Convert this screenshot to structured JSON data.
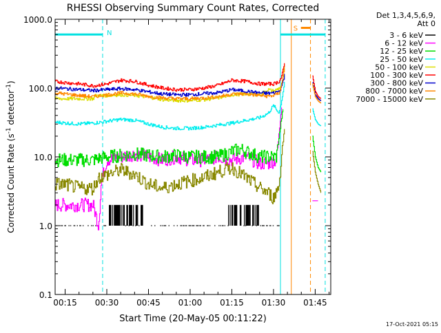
{
  "chart_data": {
    "type": "line",
    "title": "RHESSI Observing Summary Count Rates, Corrected",
    "xlabel": "Start Time (20-May-05 00:11:22)",
    "ylabel_main": "Corrected Count Rate (s",
    "ylabel_exp1": "-1",
    "ylabel_mid": " detector",
    "ylabel_exp2": "-1",
    "ylabel_end": ")",
    "y_scale": "log",
    "ylim": [
      0.1,
      1000
    ],
    "xlim_minutes": [
      11.4,
      110.6
    ],
    "x_ticks": [
      {
        "label": "00:15",
        "m": 15
      },
      {
        "label": "00:30",
        "m": 30
      },
      {
        "label": "00:45",
        "m": 45
      },
      {
        "label": "01:00",
        "m": 60
      },
      {
        "label": "01:15",
        "m": 75
      },
      {
        "label": "01:30",
        "m": 90
      },
      {
        "label": "01:45",
        "m": 105
      }
    ],
    "y_ticks": [
      {
        "label": "0.1",
        "v": 0.1
      },
      {
        "label": "1.0",
        "v": 1
      },
      {
        "label": "10.0",
        "v": 10
      },
      {
        "label": "100.0",
        "v": 100
      },
      {
        "label": "1000.0",
        "v": 1000
      }
    ],
    "legend_header": [
      "Det 1,3,4,5,6,9,",
      "Att 0"
    ],
    "legend_position": "right",
    "series": [
      {
        "name": "3 - 6 keV",
        "color": "#000000",
        "style": "sparse",
        "x": [
          11.4,
          20,
          23,
          27,
          28,
          35,
          38,
          40,
          45,
          50,
          55,
          60,
          65,
          70,
          73,
          75,
          77,
          78,
          80,
          83,
          86,
          89,
          91,
          91.8
        ],
        "y": [
          1,
          1,
          1,
          1,
          1,
          2,
          2,
          2,
          1,
          1,
          1,
          1,
          1,
          1,
          1,
          2,
          2,
          2,
          2,
          2,
          1,
          1,
          1,
          1.2
        ]
      },
      {
        "name": "6 - 12 keV",
        "color": "#ff00ff",
        "x": [
          11.4,
          20,
          25,
          27,
          28,
          30,
          35,
          40,
          45,
          50,
          55,
          60,
          65,
          70,
          75,
          80,
          85,
          88,
          91,
          93
        ],
        "y": [
          2,
          2,
          2,
          1,
          4.5,
          9,
          10,
          11,
          10,
          9,
          10,
          9,
          9,
          10,
          9,
          10,
          8,
          8,
          9,
          60
        ]
      },
      {
        "name": "12 - 25 keV",
        "color": "#00dd00",
        "x": [
          11.4,
          15,
          20,
          25,
          27,
          30,
          35,
          40,
          45,
          50,
          55,
          60,
          65,
          70,
          73,
          75,
          78,
          80,
          85,
          88,
          91,
          93,
          93.5
        ],
        "y": [
          9,
          9,
          9,
          9,
          9.5,
          10,
          10.5,
          11,
          10.5,
          10,
          10.5,
          10,
          10,
          10,
          11,
          12,
          13,
          12,
          10,
          10,
          10,
          40,
          50
        ]
      },
      {
        "name": "25 - 50 keV",
        "color": "#00eeee",
        "x": [
          11.4,
          15,
          20,
          25,
          28,
          30,
          35,
          40,
          45,
          50,
          55,
          60,
          65,
          70,
          75,
          80,
          85,
          88,
          90,
          91,
          92,
          93,
          94
        ],
        "y": [
          32,
          31,
          30,
          31,
          32,
          33,
          35,
          34,
          30,
          27,
          26,
          26,
          27,
          29,
          31,
          34,
          37,
          43,
          56,
          48,
          44,
          70,
          130
        ]
      },
      {
        "name": "50 - 100 keV",
        "color": "#dddd00",
        "x": [
          11.4,
          15,
          20,
          25,
          26,
          30,
          35,
          40,
          45,
          50,
          55,
          60,
          65,
          70,
          75,
          80,
          85,
          88,
          90,
          92,
          93,
          94
        ],
        "y": [
          70,
          70,
          70,
          70,
          78,
          78,
          80,
          78,
          74,
          68,
          66,
          66,
          68,
          72,
          80,
          82,
          80,
          95,
          90,
          100,
          110,
          230
        ]
      },
      {
        "name": "100 - 300 keV",
        "color": "#ff0000",
        "x": [
          11.4,
          15,
          20,
          25,
          30,
          35,
          40,
          45,
          50,
          55,
          60,
          65,
          70,
          75,
          80,
          85,
          88,
          90,
          92,
          93,
          94
        ],
        "y": [
          125,
          120,
          115,
          108,
          115,
          130,
          125,
          110,
          100,
          95,
          95,
          100,
          110,
          130,
          125,
          115,
          115,
          115,
          125,
          150,
          240
        ]
      },
      {
        "name": "300 - 800 keV",
        "color": "#0000cc",
        "x": [
          11.4,
          15,
          20,
          25,
          30,
          35,
          40,
          45,
          50,
          55,
          60,
          65,
          70,
          75,
          80,
          85,
          88,
          90,
          92,
          93,
          94
        ],
        "y": [
          100,
          98,
          95,
          92,
          95,
          98,
          95,
          88,
          82,
          80,
          80,
          83,
          86,
          95,
          90,
          85,
          84,
          85,
          90,
          110,
          160
        ]
      },
      {
        "name": "800 - 7000 keV",
        "color": "#ff8800",
        "x": [
          11.4,
          15,
          20,
          25,
          30,
          35,
          40,
          45,
          50,
          55,
          60,
          65,
          70,
          75,
          80,
          85,
          88,
          90,
          92,
          93,
          94
        ],
        "y": [
          85,
          82,
          78,
          75,
          80,
          85,
          82,
          76,
          72,
          70,
          70,
          72,
          75,
          82,
          82,
          78,
          76,
          78,
          85,
          120,
          210
        ]
      },
      {
        "name": "7000 - 15000 keV",
        "color": "#888800",
        "x": [
          11.4,
          15,
          20,
          25,
          27,
          30,
          35,
          40,
          45,
          50,
          55,
          60,
          65,
          70,
          75,
          80,
          85,
          88,
          90,
          92,
          93,
          94
        ],
        "y": [
          4,
          4,
          3.5,
          3.5,
          5,
          5.5,
          6.5,
          5.5,
          4,
          3.5,
          4,
          4.5,
          5,
          6,
          7,
          5,
          3.5,
          3,
          2.5,
          4,
          12,
          28
        ]
      }
    ],
    "post_gap_series": [
      {
        "name": "3 - 6 keV",
        "color": "#000000",
        "x": [],
        "y": []
      },
      {
        "name": "6 - 12 keV",
        "color": "#ff00ff",
        "x": [
          104,
          105,
          106
        ],
        "y": [
          2.3,
          2.3,
          2.3
        ]
      },
      {
        "name": "12 - 25 keV",
        "color": "#00dd00",
        "x": [
          104,
          105,
          106,
          107
        ],
        "y": [
          20,
          10,
          7,
          6
        ]
      },
      {
        "name": "25 - 50 keV",
        "color": "#00eeee",
        "x": [
          104,
          105,
          106,
          107
        ],
        "y": [
          50,
          35,
          30,
          28
        ]
      },
      {
        "name": "50 - 100 keV",
        "color": "#dddd00",
        "x": [
          104,
          105,
          106,
          107
        ],
        "y": [
          110,
          80,
          70,
          65
        ]
      },
      {
        "name": "100 - 300 keV",
        "color": "#ff0000",
        "x": [
          104,
          105,
          106,
          107
        ],
        "y": [
          150,
          90,
          75,
          70
        ]
      },
      {
        "name": "300 - 800 keV",
        "color": "#0000cc",
        "x": [
          104,
          105,
          106,
          107
        ],
        "y": [
          120,
          80,
          70,
          65
        ]
      },
      {
        "name": "800 - 7000 keV",
        "color": "#ff8800",
        "x": [
          104,
          105,
          106,
          107
        ],
        "y": [
          115,
          75,
          65,
          60
        ]
      },
      {
        "name": "7000 - 15000 keV",
        "color": "#888800",
        "x": [
          104,
          105,
          106,
          107
        ],
        "y": [
          12,
          6,
          4,
          3
        ]
      }
    ],
    "annotations": {
      "night_bars": [
        {
          "label": "N",
          "color": "#00e0e0",
          "start": 11.4,
          "end": 28.5,
          "v": 600
        },
        {
          "label": "",
          "color": "#00e0e0",
          "start": 92.5,
          "end": 108.6,
          "v": 600
        }
      ],
      "saa_bar": {
        "label": "S",
        "color": "#ff8800",
        "start": 96.4,
        "end": 103.3,
        "v": 750
      },
      "vlines": [
        {
          "m": 11.4,
          "color": "#00e0e0",
          "dash": false
        },
        {
          "m": 28.5,
          "color": "#00e0e0",
          "dash": true
        },
        {
          "m": 92.5,
          "color": "#00e0e0",
          "dash": false
        },
        {
          "m": 96.4,
          "color": "#ff8800",
          "dash": false
        },
        {
          "m": 103.3,
          "color": "#ff8800",
          "dash": true
        },
        {
          "m": 108.6,
          "color": "#00e0e0",
          "dash": true
        }
      ]
    },
    "footer_timestamp": "17-Oct-2021 05:15"
  }
}
